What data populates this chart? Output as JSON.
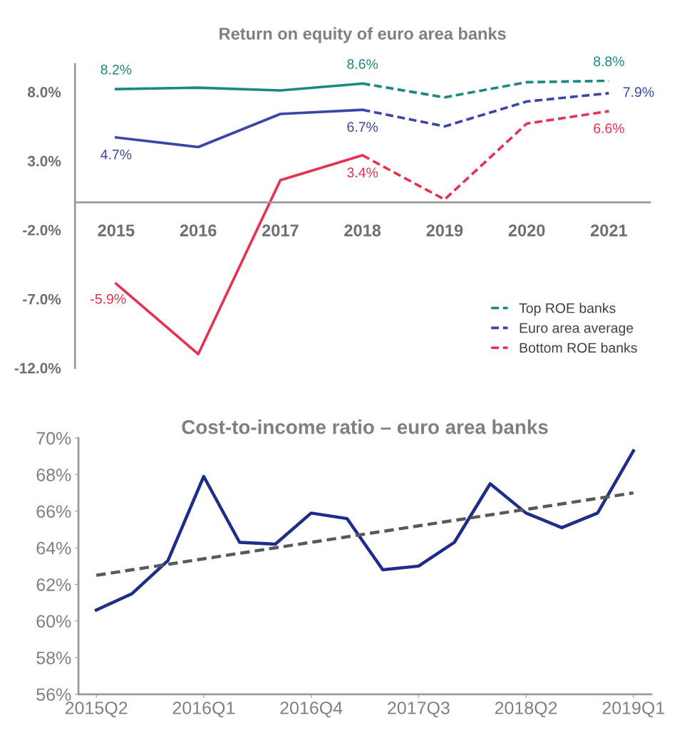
{
  "chart_data": [
    {
      "type": "line",
      "title": "Return on equity of euro area banks",
      "categories": [
        "2015",
        "2016",
        "2017",
        "2018",
        "2019",
        "2020",
        "2021"
      ],
      "series": [
        {
          "color": "#1a8a7e",
          "line_style": "solid",
          "values": [
            8.2,
            8.3,
            8.1,
            8.6,
            null,
            null,
            null
          ],
          "value_labels": [
            "8.2%",
            null,
            null,
            "8.6%",
            null,
            null,
            null
          ]
        },
        {
          "color": "#3b45a8",
          "line_style": "solid",
          "values": [
            4.7,
            4.0,
            6.4,
            6.7,
            null,
            null,
            null
          ],
          "value_labels": [
            "4.7%",
            null,
            null,
            "6.7%",
            null,
            null,
            null
          ]
        },
        {
          "color": "#e8304f",
          "line_style": "solid",
          "values": [
            -5.9,
            -11.0,
            1.6,
            3.4,
            null,
            null,
            null
          ],
          "value_labels": [
            "-5.9%",
            null,
            null,
            "3.4%",
            null,
            null,
            null
          ]
        },
        {
          "name": "Top ROE banks",
          "color": "#1a8a7e",
          "line_style": "dashed",
          "values": [
            null,
            null,
            null,
            8.6,
            7.6,
            8.7,
            8.8
          ],
          "value_labels": [
            null,
            null,
            null,
            null,
            null,
            null,
            "8.8%"
          ]
        },
        {
          "name": "Euro area average",
          "color": "#3b45a8",
          "line_style": "dashed",
          "values": [
            null,
            null,
            null,
            6.7,
            5.5,
            7.3,
            7.9
          ],
          "value_labels": [
            null,
            null,
            null,
            null,
            null,
            null,
            "7.9%"
          ]
        },
        {
          "name": "Bottom ROE banks",
          "color": "#e8304f",
          "line_style": "dashed",
          "values": [
            null,
            null,
            null,
            3.4,
            0.2,
            5.7,
            6.6
          ],
          "value_labels": [
            null,
            null,
            null,
            null,
            null,
            null,
            "6.6%"
          ]
        }
      ],
      "ylim": [
        -12,
        10
      ],
      "yticks": [
        {
          "value": -12,
          "label": "-12.0%"
        },
        {
          "value": -7,
          "label": "-7.0%"
        },
        {
          "value": -2,
          "label": "-2.0%"
        },
        {
          "value": 3,
          "label": "3.0%"
        },
        {
          "value": 8,
          "label": "8.0%"
        }
      ],
      "grid": false,
      "legend": "bottom right"
    },
    {
      "type": "line",
      "title": "Cost-to-income ratio – euro area banks",
      "categories": [
        "2015Q2",
        null,
        null,
        "2016Q1",
        null,
        null,
        "2016Q4",
        null,
        null,
        "2017Q3",
        null,
        null,
        "2018Q2",
        null,
        null,
        "2019Q1"
      ],
      "series": [
        {
          "color": "#1f2d8a",
          "line_style": "solid",
          "values": [
            60.6,
            61.5,
            63.3,
            67.9,
            64.3,
            64.2,
            65.9,
            65.6,
            62.8,
            63.0,
            64.3,
            67.5,
            65.9,
            65.1,
            65.9,
            69.3
          ]
        },
        {
          "color": "#595959",
          "line_style": "dashed",
          "x": [
            "2015Q2",
            "2019Q1"
          ],
          "values": [
            62.5,
            67.0
          ]
        }
      ],
      "ylim": [
        56,
        70
      ],
      "yticks": [
        {
          "value": 56,
          "label": "56%"
        },
        {
          "value": 58,
          "label": "58%"
        },
        {
          "value": 60,
          "label": "60%"
        },
        {
          "value": 62,
          "label": "62%"
        },
        {
          "value": 64,
          "label": "64%"
        },
        {
          "value": 66,
          "label": "66%"
        },
        {
          "value": 68,
          "label": "68%"
        },
        {
          "value": 70,
          "label": "70%"
        }
      ],
      "grid": false,
      "legend": false
    }
  ]
}
